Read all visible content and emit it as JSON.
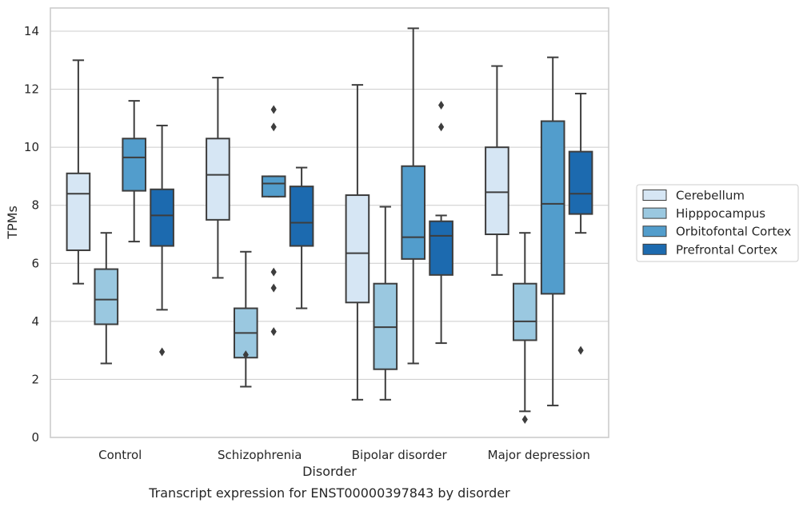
{
  "chart_data": {
    "type": "box",
    "xlabel": "Disorder",
    "ylabel": "TPMs",
    "caption": "Transcript expression for ENST00000397843 by disorder",
    "ylim": [
      0,
      14.8
    ],
    "yticks": [
      0,
      2,
      4,
      6,
      8,
      10,
      12,
      14
    ],
    "grid": "horizontal",
    "legend_position": "outside-right",
    "categories": [
      "Control",
      "Schizophrenia",
      "Bipolar disorder",
      "Major depression"
    ],
    "series": [
      {
        "name": "Cerebellum",
        "color": "#d6e6f4",
        "boxes": [
          {
            "whisker_low": 5.3,
            "q1": 6.45,
            "median": 8.4,
            "q3": 9.1,
            "whisker_high": 13.0,
            "outliers": []
          },
          {
            "whisker_low": 5.5,
            "q1": 7.5,
            "median": 9.05,
            "q3": 10.3,
            "whisker_high": 12.4,
            "outliers": []
          },
          {
            "whisker_low": 1.3,
            "q1": 4.65,
            "median": 6.35,
            "q3": 8.35,
            "whisker_high": 12.15,
            "outliers": []
          },
          {
            "whisker_low": 5.6,
            "q1": 7.0,
            "median": 8.45,
            "q3": 10.0,
            "whisker_high": 12.8,
            "outliers": []
          }
        ]
      },
      {
        "name": "Hipppocampus",
        "color": "#9ac8e0",
        "boxes": [
          {
            "whisker_low": 2.55,
            "q1": 3.9,
            "median": 4.75,
            "q3": 5.8,
            "whisker_high": 7.05,
            "outliers": []
          },
          {
            "whisker_low": 1.75,
            "q1": 2.75,
            "median": 3.6,
            "q3": 4.45,
            "whisker_high": 6.4,
            "outliers": [
              2.85
            ]
          },
          {
            "whisker_low": 1.3,
            "q1": 2.35,
            "median": 3.8,
            "q3": 5.3,
            "whisker_high": 7.95,
            "outliers": []
          },
          {
            "whisker_low": 0.9,
            "q1": 3.35,
            "median": 4.0,
            "q3": 5.3,
            "whisker_high": 7.05,
            "outliers": [
              0.62
            ]
          }
        ]
      },
      {
        "name": "Orbitofontal Cortex",
        "color": "#529dcc",
        "boxes": [
          {
            "whisker_low": 6.75,
            "q1": 8.5,
            "median": 9.65,
            "q3": 10.3,
            "whisker_high": 11.6,
            "outliers": []
          },
          {
            "whisker_low": 8.3,
            "q1": 8.3,
            "median": 8.75,
            "q3": 9.0,
            "whisker_high": 9.0,
            "outliers": [
              11.3,
              10.7,
              5.7,
              5.15,
              3.65
            ]
          },
          {
            "whisker_low": 2.55,
            "q1": 6.15,
            "median": 6.9,
            "q3": 9.35,
            "whisker_high": 14.1,
            "outliers": []
          },
          {
            "whisker_low": 1.1,
            "q1": 4.95,
            "median": 8.05,
            "q3": 10.9,
            "whisker_high": 13.1,
            "outliers": []
          }
        ]
      },
      {
        "name": "Prefrontal Cortex",
        "color": "#1c6aaf",
        "boxes": [
          {
            "whisker_low": 4.4,
            "q1": 6.6,
            "median": 7.65,
            "q3": 8.55,
            "whisker_high": 10.75,
            "outliers": [
              2.95
            ]
          },
          {
            "whisker_low": 4.45,
            "q1": 6.6,
            "median": 7.4,
            "q3": 8.65,
            "whisker_high": 9.3,
            "outliers": []
          },
          {
            "whisker_low": 3.25,
            "q1": 5.6,
            "median": 6.95,
            "q3": 7.45,
            "whisker_high": 7.65,
            "outliers": [
              11.45,
              10.7
            ]
          },
          {
            "whisker_low": 7.05,
            "q1": 7.7,
            "median": 8.4,
            "q3": 9.85,
            "whisker_high": 11.85,
            "outliers": [
              3.0
            ]
          }
        ]
      }
    ]
  }
}
